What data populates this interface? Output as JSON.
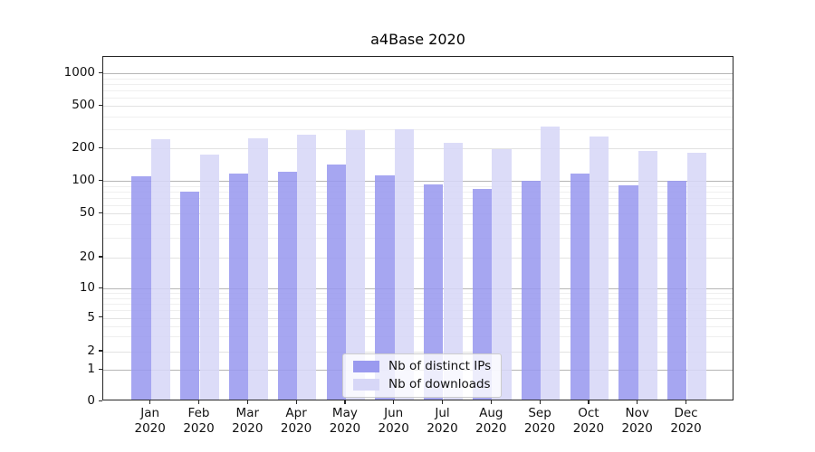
{
  "chart_data": {
    "type": "bar",
    "title": "a4Base 2020",
    "yscale": "symlog",
    "grid": true,
    "legend_position": "lower center inside plot",
    "categories": [
      "Jan",
      "Feb",
      "Mar",
      "Apr",
      "May",
      "Jun",
      "Jul",
      "Aug",
      "Sep",
      "Oct",
      "Nov",
      "Dec"
    ],
    "x_tick_year": "2020",
    "y_ticks": [
      0,
      1,
      2,
      5,
      10,
      20,
      50,
      100,
      200,
      500,
      1000
    ],
    "ylim": [
      0,
      1450
    ],
    "series": [
      {
        "name": "Nb of distinct IPs",
        "color": "#9a9aef",
        "values": [
          107,
          77,
          112,
          117,
          138,
          109,
          89,
          81,
          97,
          112,
          88,
          97
        ]
      },
      {
        "name": "Nb of downloads",
        "color": "#d7d7f7",
        "values": [
          233,
          170,
          242,
          258,
          285,
          291,
          216,
          190,
          308,
          248,
          184,
          177
        ]
      }
    ]
  }
}
